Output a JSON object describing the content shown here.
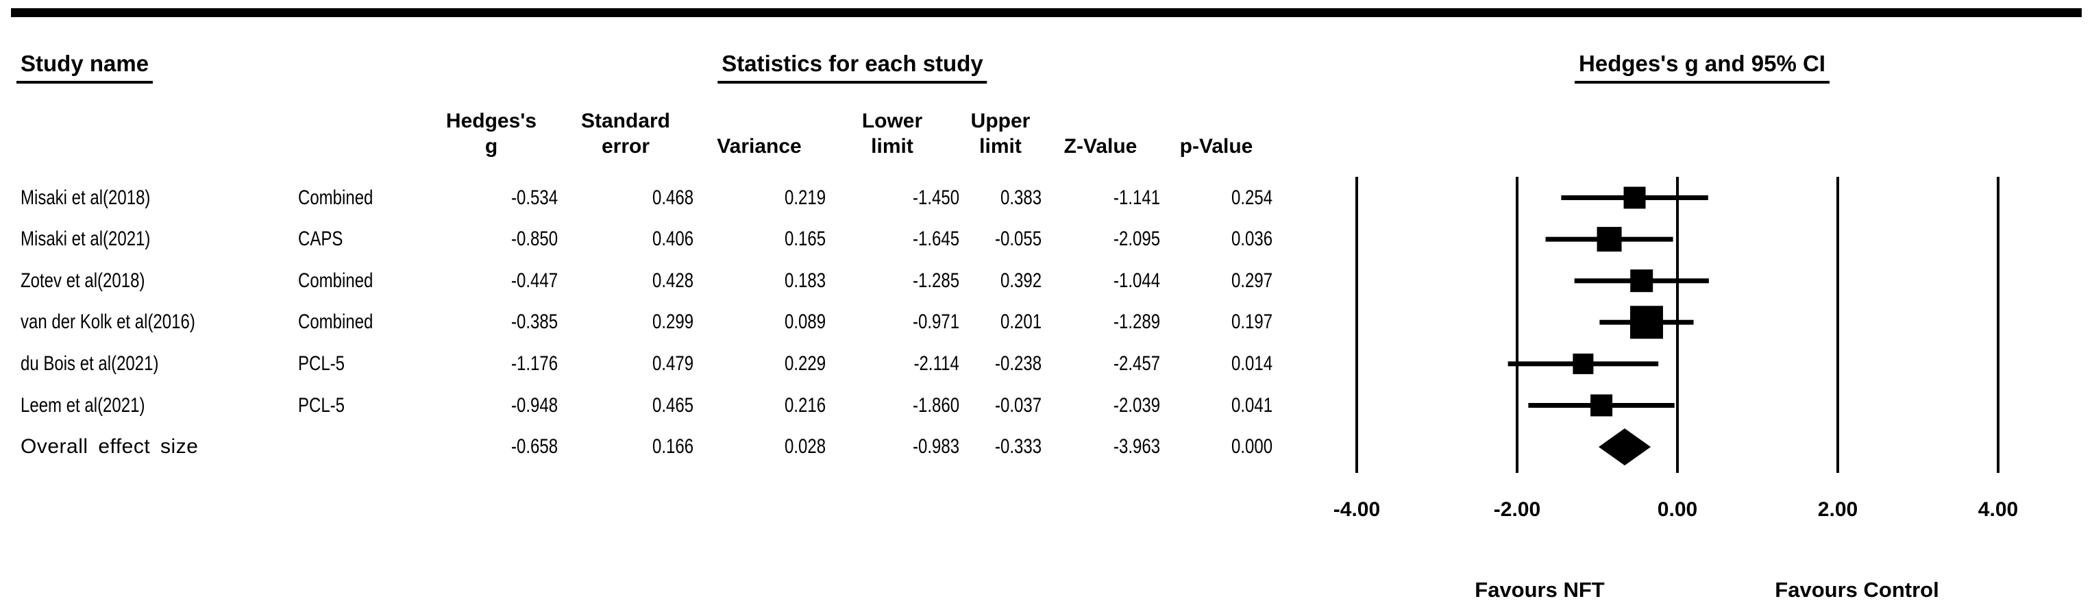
{
  "figure": {
    "section_headers": {
      "study": "Study name",
      "statistics": "Statistics for each study",
      "plot": "Hedges's g and 95% CI"
    },
    "column_headers": [
      {
        "line1": "Hedges's",
        "line2": "g"
      },
      {
        "line1": "Standard",
        "line2": "error"
      },
      {
        "line1": "",
        "line2": "Variance"
      },
      {
        "line1": "Lower",
        "line2": "limit"
      },
      {
        "line1": "Upper",
        "line2": "limit"
      },
      {
        "line1": "",
        "line2": "Z-Value"
      },
      {
        "line1": "",
        "line2": "p-Value"
      }
    ]
  },
  "chart_data": {
    "type": "scatter",
    "subtype": "forest-plot",
    "title": "Hedges's g and 95% CI",
    "effect_measure": "Hedges's g",
    "xlim": [
      -4,
      4
    ],
    "xticks": [
      -4,
      -2,
      0,
      2,
      4
    ],
    "tick_decimals": 2,
    "grid": true,
    "footer_labels": {
      "left": "Favours NFT",
      "right": "Favours Control"
    },
    "series": [
      {
        "study": "Misaki et al(2018)",
        "scale": "Combined",
        "g": -0.534,
        "se": 0.468,
        "variance": 0.219,
        "lower": -1.45,
        "upper": 0.383,
        "z": -1.141,
        "p": 0.254,
        "marker_size": 32
      },
      {
        "study": "Misaki et al(2021)",
        "scale": "CAPS",
        "g": -0.85,
        "se": 0.406,
        "variance": 0.165,
        "lower": -1.645,
        "upper": -0.055,
        "z": -2.095,
        "p": 0.036,
        "marker_size": 36
      },
      {
        "study": "Zotev et al(2018)",
        "scale": "Combined",
        "g": -0.447,
        "se": 0.428,
        "variance": 0.183,
        "lower": -1.285,
        "upper": 0.392,
        "z": -1.044,
        "p": 0.297,
        "marker_size": 33
      },
      {
        "study": "van der Kolk et al(2016)",
        "scale": "Combined",
        "g": -0.385,
        "se": 0.299,
        "variance": 0.089,
        "lower": -0.971,
        "upper": 0.201,
        "z": -1.289,
        "p": 0.197,
        "marker_size": 48
      },
      {
        "study": "du Bois et al(2021)",
        "scale": "PCL-5",
        "g": -1.176,
        "se": 0.479,
        "variance": 0.229,
        "lower": -2.114,
        "upper": -0.238,
        "z": -2.457,
        "p": 0.014,
        "marker_size": 30
      },
      {
        "study": "Leem et al(2021)",
        "scale": "PCL-5",
        "g": -0.948,
        "se": 0.465,
        "variance": 0.216,
        "lower": -1.86,
        "upper": -0.037,
        "z": -2.039,
        "p": 0.041,
        "marker_size": 32
      }
    ],
    "overall": {
      "study": "Overall effect size",
      "scale": "",
      "g": -0.658,
      "se": 0.166,
      "variance": 0.028,
      "lower": -0.983,
      "upper": -0.333,
      "z": -3.963,
      "p": 0.0,
      "marker": "diamond"
    }
  }
}
